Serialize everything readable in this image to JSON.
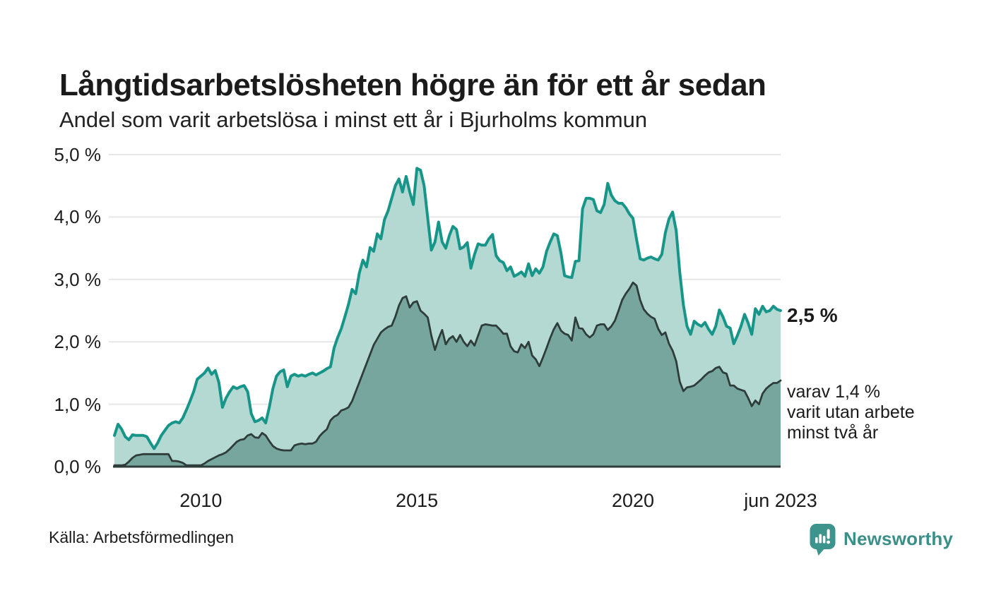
{
  "header": {
    "title": "Långtidsarbetslösheten högre än för ett år sedan",
    "subtitle": "Andel som varit arbetslösa i minst ett år i Bjurholms kommun"
  },
  "annotations": {
    "latest_value": "2,5 %",
    "secondary": [
      "varav 1,4 %",
      "varit utan arbete",
      "minst två år"
    ]
  },
  "footer": {
    "source": "Källa: Arbetsförmedlingen",
    "brand": "Newsworthy"
  },
  "colors": {
    "background": "#ffffff",
    "text": "#1b1b1b",
    "gridline": "#e7e7ea",
    "line_primary": "#189589",
    "fill_primary": "#aed6d0",
    "line_secondary": "#2e3d3a",
    "fill_secondary": "#74a39c",
    "brand_teal": "#3c948c"
  },
  "chart_data": {
    "type": "area",
    "title": "Långtidsarbetslösheten högre än för ett år sedan",
    "subtitle": "Andel som varit arbetslösa i minst ett år i Bjurholms kommun",
    "unit": "%",
    "frequency": "monthly",
    "x_start": "2008-01",
    "x_end": "2023-06",
    "ylim": [
      0,
      5
    ],
    "grid": true,
    "legend": "none",
    "y_ticks": [
      {
        "value": 0,
        "label": "0,0 %"
      },
      {
        "value": 1,
        "label": "1,0 %"
      },
      {
        "value": 2,
        "label": "2,0 %"
      },
      {
        "value": 3,
        "label": "3,0 %"
      },
      {
        "value": 4,
        "label": "4,0 %"
      },
      {
        "value": 5,
        "label": "5,0 %"
      }
    ],
    "x_ticks": [
      {
        "label": "2010",
        "month_index": 24
      },
      {
        "label": "2015",
        "month_index": 84
      },
      {
        "label": "2020",
        "month_index": 144
      },
      {
        "label": "jun 2023",
        "month_index": 185
      }
    ],
    "series": [
      {
        "name": "Andel arbetslösa minst ett år",
        "latest_label": "2,5 %",
        "values": [
          0.5,
          0.68,
          0.6,
          0.48,
          0.43,
          0.51,
          0.5,
          0.5,
          0.5,
          0.48,
          0.38,
          0.29,
          0.38,
          0.5,
          0.58,
          0.66,
          0.7,
          0.72,
          0.7,
          0.78,
          0.91,
          1.05,
          1.2,
          1.4,
          1.45,
          1.5,
          1.58,
          1.48,
          1.54,
          1.35,
          0.95,
          1.1,
          1.2,
          1.28,
          1.25,
          1.28,
          1.3,
          1.2,
          0.85,
          0.72,
          0.74,
          0.78,
          0.7,
          0.95,
          1.25,
          1.45,
          1.52,
          1.55,
          1.28,
          1.45,
          1.48,
          1.45,
          1.47,
          1.45,
          1.48,
          1.5,
          1.47,
          1.5,
          1.53,
          1.57,
          1.6,
          1.9,
          2.07,
          2.21,
          2.4,
          2.6,
          2.84,
          2.77,
          3.1,
          3.31,
          3.2,
          3.51,
          3.45,
          3.73,
          3.65,
          3.96,
          4.1,
          4.3,
          4.5,
          4.61,
          4.4,
          4.65,
          4.4,
          4.2,
          4.78,
          4.75,
          4.5,
          3.98,
          3.47,
          3.6,
          3.92,
          3.6,
          3.5,
          3.7,
          3.85,
          3.8,
          3.49,
          3.52,
          3.59,
          3.18,
          3.4,
          3.57,
          3.55,
          3.55,
          3.65,
          3.72,
          3.38,
          3.3,
          3.27,
          3.14,
          3.2,
          3.05,
          3.08,
          3.12,
          3.05,
          3.25,
          3.06,
          3.17,
          3.1,
          3.2,
          3.45,
          3.6,
          3.73,
          3.7,
          3.42,
          3.06,
          3.04,
          3.03,
          3.29,
          3.3,
          4.13,
          4.3,
          4.3,
          4.28,
          4.1,
          4.07,
          4.2,
          4.54,
          4.35,
          4.26,
          4.22,
          4.22,
          4.15,
          4.05,
          3.98,
          3.64,
          3.33,
          3.31,
          3.34,
          3.36,
          3.33,
          3.31,
          3.4,
          3.75,
          3.97,
          4.08,
          3.78,
          3.11,
          2.59,
          2.25,
          2.12,
          2.33,
          2.28,
          2.25,
          2.31,
          2.2,
          2.12,
          2.25,
          2.51,
          2.4,
          2.25,
          2.22,
          1.97,
          2.1,
          2.25,
          2.44,
          2.3,
          2.12,
          2.53,
          2.44,
          2.57,
          2.48,
          2.5,
          2.57,
          2.52,
          2.5
        ]
      },
      {
        "name": "Andel arbetslösa minst två år",
        "latest_label": "1,4 %",
        "values": [
          0.02,
          0.02,
          0.02,
          0.03,
          0.08,
          0.14,
          0.18,
          0.19,
          0.2,
          0.2,
          0.2,
          0.2,
          0.2,
          0.2,
          0.2,
          0.2,
          0.09,
          0.09,
          0.08,
          0.06,
          0.02,
          0.02,
          0.02,
          0.02,
          0.02,
          0.05,
          0.09,
          0.12,
          0.15,
          0.18,
          0.2,
          0.23,
          0.28,
          0.34,
          0.4,
          0.43,
          0.44,
          0.5,
          0.52,
          0.47,
          0.46,
          0.54,
          0.5,
          0.41,
          0.33,
          0.29,
          0.27,
          0.26,
          0.26,
          0.26,
          0.34,
          0.36,
          0.37,
          0.36,
          0.37,
          0.37,
          0.4,
          0.49,
          0.55,
          0.6,
          0.74,
          0.8,
          0.83,
          0.9,
          0.92,
          0.95,
          1.05,
          1.2,
          1.35,
          1.5,
          1.65,
          1.8,
          1.95,
          2.05,
          2.15,
          2.2,
          2.24,
          2.26,
          2.4,
          2.58,
          2.7,
          2.73,
          2.55,
          2.63,
          2.65,
          2.5,
          2.45,
          2.39,
          2.1,
          1.87,
          2.05,
          2.19,
          1.96,
          2.05,
          2.09,
          2.0,
          2.11,
          2.0,
          1.93,
          2.02,
          1.94,
          2.1,
          2.26,
          2.28,
          2.27,
          2.26,
          2.26,
          2.2,
          2.13,
          2.13,
          1.93,
          1.85,
          1.83,
          1.96,
          1.9,
          2.0,
          1.78,
          1.72,
          1.61,
          1.75,
          1.9,
          2.06,
          2.2,
          2.3,
          2.18,
          2.13,
          2.11,
          2.02,
          2.39,
          2.22,
          2.21,
          2.12,
          2.07,
          2.12,
          2.26,
          2.28,
          2.28,
          2.19,
          2.25,
          2.34,
          2.5,
          2.67,
          2.77,
          2.85,
          2.95,
          2.9,
          2.67,
          2.52,
          2.45,
          2.4,
          2.37,
          2.21,
          2.11,
          2.15,
          1.97,
          1.86,
          1.69,
          1.36,
          1.21,
          1.27,
          1.28,
          1.3,
          1.35,
          1.4,
          1.46,
          1.51,
          1.53,
          1.58,
          1.6,
          1.51,
          1.49,
          1.3,
          1.3,
          1.25,
          1.23,
          1.21,
          1.1,
          0.97,
          1.06,
          1.0,
          1.17,
          1.25,
          1.3,
          1.34,
          1.34,
          1.38
        ]
      }
    ]
  }
}
